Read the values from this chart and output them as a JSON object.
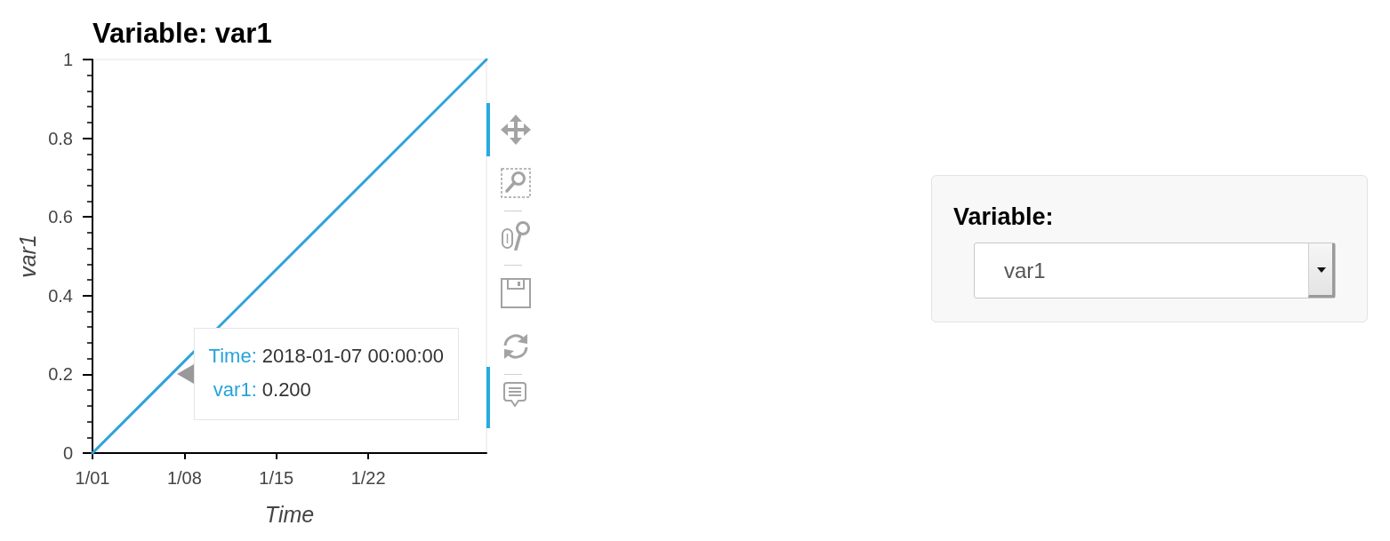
{
  "chart_data": [
    {
      "type": "line",
      "title": "Variable: var1",
      "xlabel": "Time",
      "ylabel": "var1",
      "x": [
        "2018-01-01",
        "2018-01-07",
        "2018-01-31"
      ],
      "values": [
        0,
        0.2,
        1
      ],
      "color": "#2fa1da",
      "line_style": "solid",
      "xlim": [
        "2018-01-01",
        "2018-01-31"
      ],
      "xticks": [
        {
          "value": "2018-01-01",
          "label": "1/01"
        },
        {
          "value": "2018-01-08",
          "label": "1/08"
        },
        {
          "value": "2018-01-15",
          "label": "1/15"
        },
        {
          "value": "2018-01-22",
          "label": "1/22"
        }
      ],
      "ylim": [
        0,
        1
      ],
      "yticks": [
        0,
        {
          "value": 0.04,
          "label": null
        },
        {
          "value": 0.08,
          "label": null
        },
        {
          "value": 0.12,
          "label": null
        },
        {
          "value": 0.16,
          "label": null
        },
        0.2,
        {
          "value": 0.24,
          "label": null
        },
        {
          "value": 0.28,
          "label": null
        },
        {
          "value": 0.32,
          "label": null
        },
        {
          "value": 0.36,
          "label": null
        },
        0.4,
        {
          "value": 0.44,
          "label": null
        },
        {
          "value": 0.48,
          "label": null
        },
        {
          "value": 0.52,
          "label": null
        },
        {
          "value": 0.56,
          "label": null
        },
        0.6,
        {
          "value": 0.64,
          "label": null
        },
        {
          "value": 0.68,
          "label": null
        },
        {
          "value": 0.72,
          "label": null
        },
        {
          "value": 0.76,
          "label": null
        },
        0.8,
        {
          "value": 0.84,
          "label": null
        },
        {
          "value": 0.88,
          "label": null
        },
        {
          "value": 0.92,
          "label": null
        },
        {
          "value": 0.96,
          "label": null
        },
        1
      ],
      "annotations": [
        {
          "text": "Time: 2018-01-07 00:00:00",
          "x": "2018-01-07",
          "y": 0.2
        },
        {
          "text": "var1: 0.200",
          "x": "2018-01-07",
          "y": 0.2
        }
      ]
    },
    {
      "type": "other",
      "title": "Variable:",
      "annotations": [
        "var1"
      ]
    }
  ]
}
